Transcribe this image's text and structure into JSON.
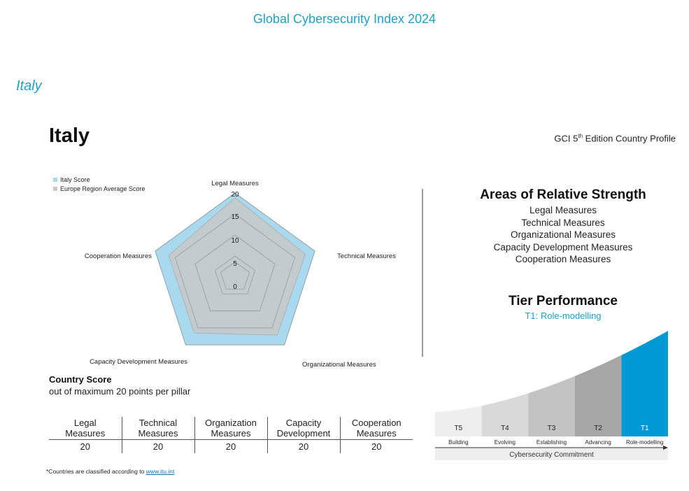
{
  "header": {
    "title": "Global Cybersecurity Index 2024"
  },
  "section": {
    "title": "Italy"
  },
  "profile": {
    "country": "Italy",
    "edition_prefix": "GCI 5",
    "edition_sup": "th",
    "edition_suffix": " Edition Country Profile"
  },
  "colors": {
    "accent": "#1fa0cc",
    "country_fill": "#a9d9ee",
    "region_fill": "#c8c8c8",
    "tier_highlight": "#0099d6"
  },
  "chart_data": {
    "type": "radar",
    "axes": [
      "Legal Measures",
      "Technical Measures",
      "Organizational Measures",
      "Capacity Development Measures",
      "Cooperation Measures"
    ],
    "ticks": [
      0,
      5,
      10,
      15,
      20
    ],
    "range": [
      0,
      20
    ],
    "series": [
      {
        "name": "Italy Score",
        "values": [
          20,
          20,
          20,
          20,
          20
        ],
        "color": "#a9d9ee"
      },
      {
        "name": "Europe Region Average Score",
        "values": [
          18.9,
          17.6,
          17.1,
          16.5,
          16.6
        ],
        "color": "#c8c8c8"
      }
    ],
    "legend_position": "top-left"
  },
  "strengths": {
    "title": "Areas of Relative Strength",
    "items": [
      "Legal Measures",
      "Technical Measures",
      "Organizational Measures",
      "Capacity Development Measures",
      "Cooperation Measures"
    ]
  },
  "tier": {
    "title": "Tier Performance",
    "value": "T1: Role-modelling",
    "levels": [
      {
        "code": "T5",
        "label": "Building",
        "color": "#eeeeee"
      },
      {
        "code": "T4",
        "label": "Evolving",
        "color": "#d9d9d9"
      },
      {
        "code": "T3",
        "label": "Establishing",
        "color": "#c3c3c3"
      },
      {
        "code": "T2",
        "label": "Advancing",
        "color": "#a6a6a6"
      },
      {
        "code": "T1",
        "label": "Role-modelling",
        "color": "#0099d6"
      }
    ],
    "axis_label": "Cybersecurity Commitment"
  },
  "score": {
    "title": "Country Score",
    "subtitle": "out of maximum 20 points per pillar",
    "columns": [
      {
        "line1": "Legal",
        "line2": "Measures",
        "value": "20"
      },
      {
        "line1": "Technical",
        "line2": "Measures",
        "value": "20"
      },
      {
        "line1": "Organization",
        "line2": "Measures",
        "value": "20"
      },
      {
        "line1": "Capacity",
        "line2": "Development",
        "value": "20"
      },
      {
        "line1": "Cooperation",
        "line2": "Measures",
        "value": "20"
      }
    ]
  },
  "footnote": {
    "text": "*Countries are classified according to ",
    "link": "www.itu.int "
  }
}
